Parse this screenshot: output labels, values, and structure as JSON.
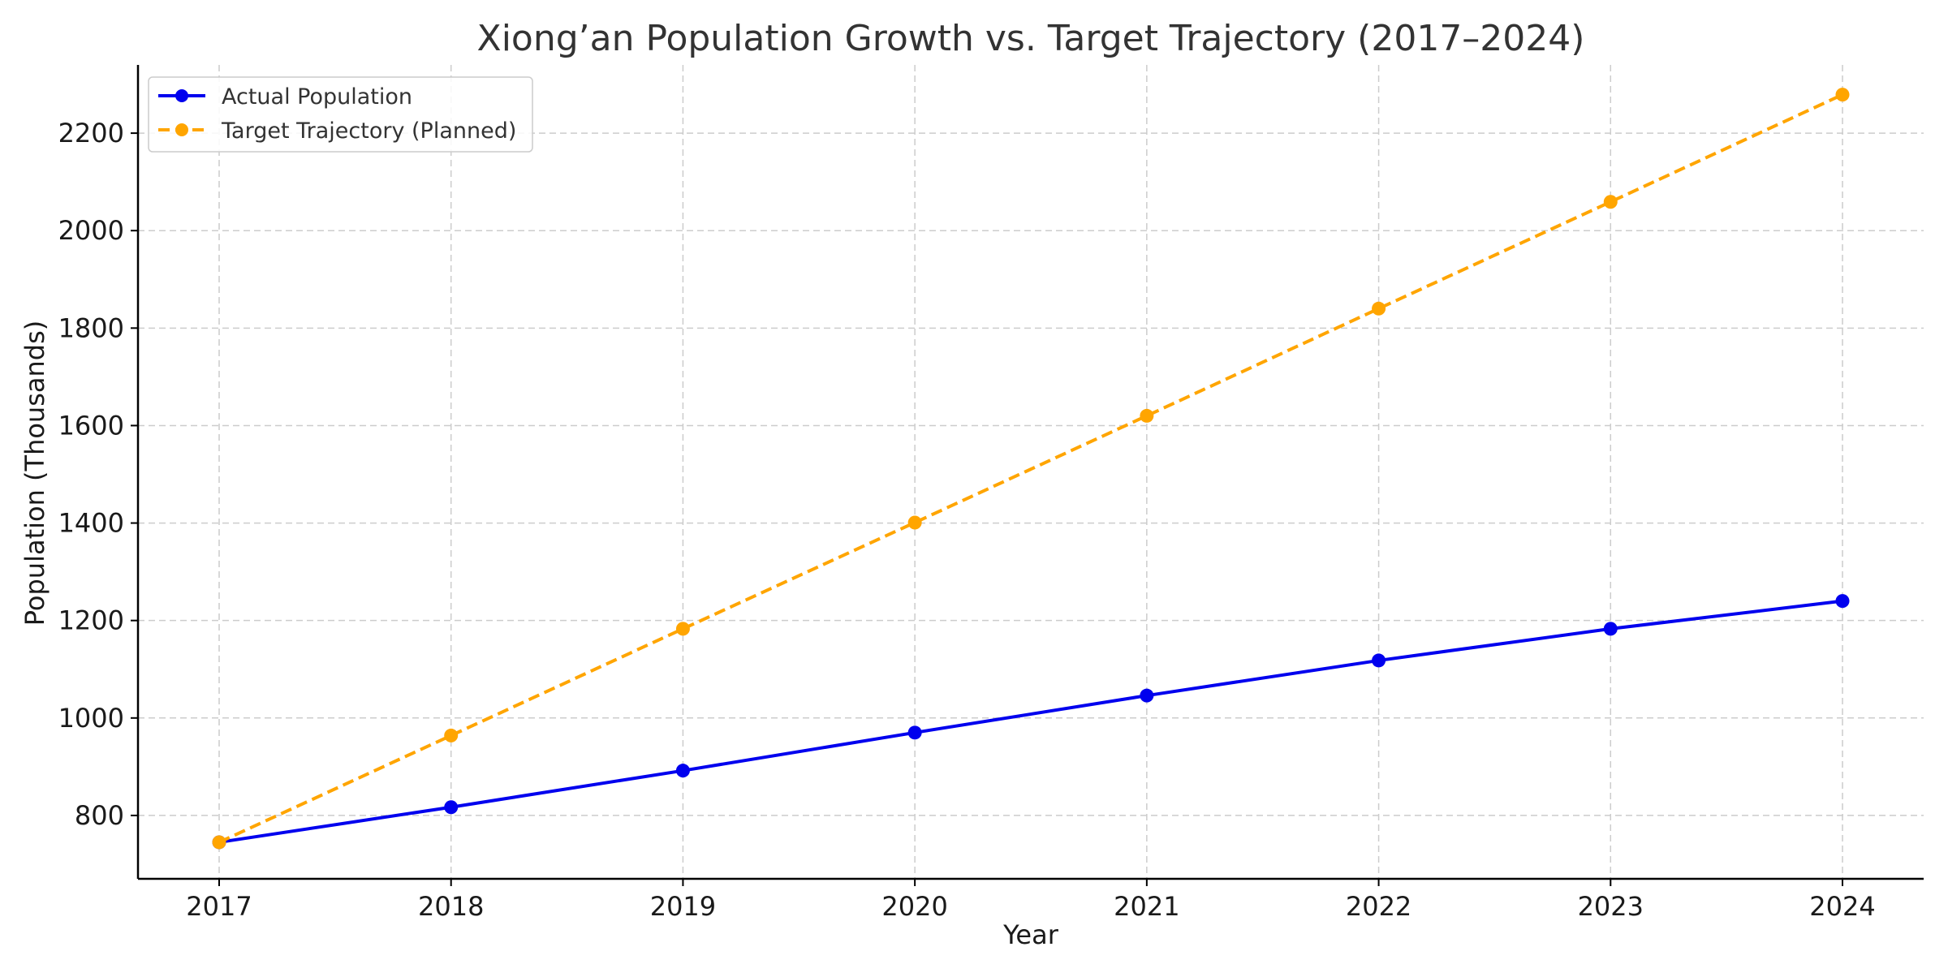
{
  "chart_data": {
    "type": "line",
    "title": "Xiong’an Population Growth vs. Target Trajectory (2017–2024)",
    "xlabel": "Year",
    "ylabel": "Population (Thousands)",
    "x": [
      2017,
      2018,
      2019,
      2020,
      2021,
      2022,
      2023,
      2024
    ],
    "x_tick_labels": [
      "2017",
      "2018",
      "2019",
      "2020",
      "2021",
      "2022",
      "2023",
      "2024"
    ],
    "y_ticks": [
      800,
      1000,
      1200,
      1400,
      1600,
      1800,
      2000,
      2200
    ],
    "y_tick_labels": [
      "800",
      "1000",
      "1200",
      "1400",
      "1600",
      "1800",
      "2000",
      "2200"
    ],
    "xlim": [
      2016.65,
      2024.35
    ],
    "ylim": [
      670,
      2340
    ],
    "grid": true,
    "legend_position": "top-left",
    "series": [
      {
        "name": "Actual Population",
        "color": "#0000ee",
        "line_style": "solid",
        "marker": "circle",
        "values": [
          745,
          817,
          892,
          970,
          1046,
          1118,
          1183,
          1240
        ]
      },
      {
        "name": "Target Trajectory (Planned)",
        "color": "#ffa500",
        "line_style": "dashed",
        "marker": "circle",
        "values": [
          745,
          964,
          1183,
          1401,
          1620,
          1840,
          2059,
          2279
        ]
      }
    ]
  }
}
